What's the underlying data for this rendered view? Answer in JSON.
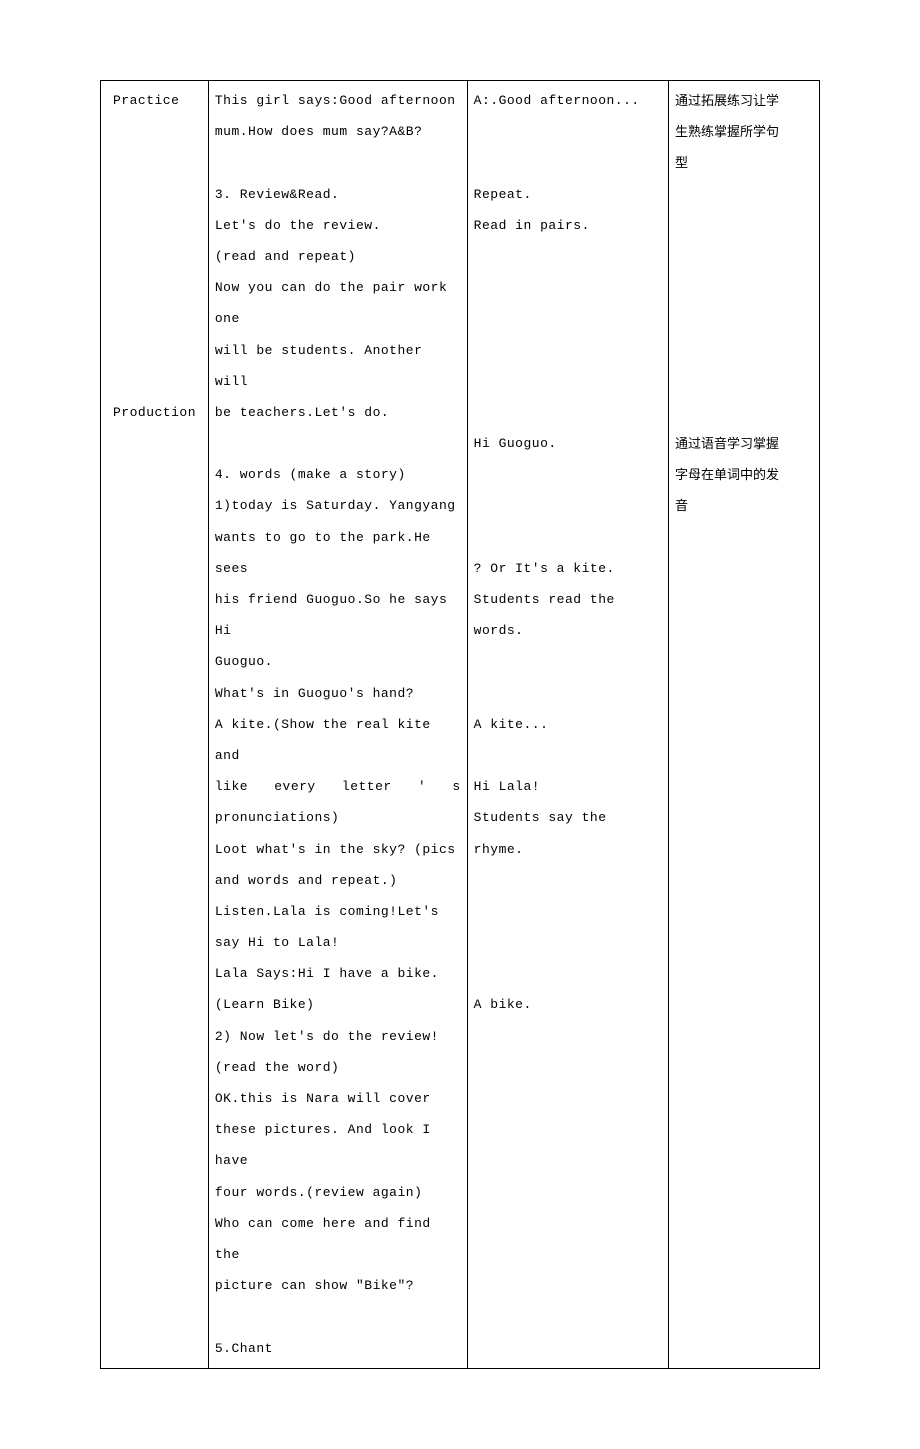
{
  "table": {
    "border_color": "#000000",
    "background_color": "#ffffff",
    "text_color": "#000000",
    "font_size": 13,
    "line_height": 2.4,
    "columns": [
      {
        "key": "stage",
        "width_pct": 15
      },
      {
        "key": "teacher",
        "width_pct": 36
      },
      {
        "key": "student",
        "width_pct": 28
      },
      {
        "key": "purpose",
        "width_pct": 21
      }
    ],
    "stage": {
      "practice": "Practice",
      "production": "Production"
    },
    "teacher": {
      "line1": "This girl says:Good afternoon",
      "line2": "mum.How does mum say?A&B?",
      "section3_title": "3. Review&Read.",
      "section3_l1": "Let's do the review.",
      "section3_l2": "(read and repeat)",
      "section3_l3": "Now you can do the pair work one",
      "section3_l4": "will be students. Another will",
      "section3_l5": "be teachers.Let's do.",
      "section4_title": "4. words (make a story)",
      "section4_l1": "1)today is Saturday. Yangyang",
      "section4_l2": "wants to go to the park.He sees",
      "section4_l3": "his friend Guoguo.So he says Hi",
      "section4_l4": "Guoguo.",
      "section4_l5": "What's in Guoguo's hand?",
      "section4_l6": "A kite.(Show the real kite and",
      "section4_l7a": "like",
      "section4_l7b": "every",
      "section4_l7c": "letter",
      "section4_l7d": "'",
      "section4_l7e": "s",
      "section4_l8": "pronunciations)",
      "section4_l9": "Loot what's in the sky? (pics",
      "section4_l10": "and words and repeat.)",
      "prod_l1": "Listen.Lala is coming!Let's",
      "prod_l2": "say Hi to Lala!",
      "prod_l3": "Lala Says:Hi I have a bike.",
      "prod_l4": "(Learn Bike)",
      "prod_l5": "2) Now let's do the review!",
      "prod_l6": "(read the word)",
      "prod_l7": "OK.this is Nara will cover",
      "prod_l8": "these pictures. And look I have",
      "prod_l9": "four words.(review again)",
      "prod_l10": "Who can come here and find the",
      "prod_l11": "picture can show \"Bike\"?",
      "section5_title": "5.Chant"
    },
    "student": {
      "l1": "A:.Good afternoon...",
      "l2": "Repeat.",
      "l3": "Read in pairs.",
      "l4": "Hi Guoguo.",
      "l5": "? Or It's a kite.",
      "l6": "Students read the words.",
      "l7": "A kite...",
      "l8": "Hi Lala!",
      "l9": "Students say the rhyme.",
      "l10": "A bike."
    },
    "purpose": {
      "p1_l1": "通过拓展练习让学",
      "p1_l2": "生熟练掌握所学句",
      "p1_l3": "型",
      "p2_l1": "通过语音学习掌握",
      "p2_l2": "字母在单词中的发",
      "p2_l3": "音"
    }
  }
}
